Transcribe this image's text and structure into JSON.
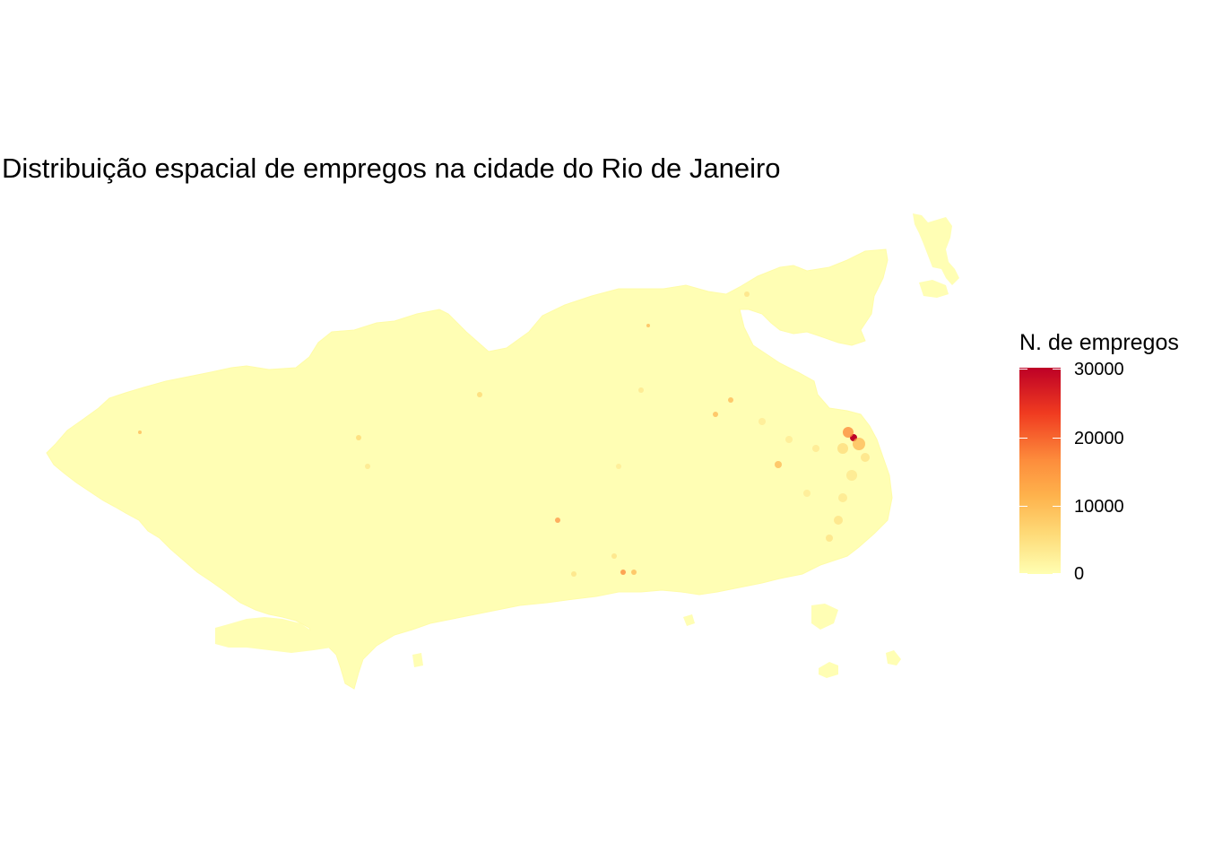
{
  "title": "Distribuição espacial de empregos na cidade do Rio de Janeiro",
  "legend": {
    "title": "N. de empregos",
    "labels": [
      "30000",
      "20000",
      "10000",
      "0"
    ],
    "max_value": 30000,
    "colors": [
      "#ffffb2",
      "#fed976",
      "#feb24c",
      "#fd8d3c",
      "#f03b20",
      "#bd0026"
    ]
  },
  "map": {
    "base_color": "#ffffb4",
    "hotspot_color": "#bd0026"
  }
}
